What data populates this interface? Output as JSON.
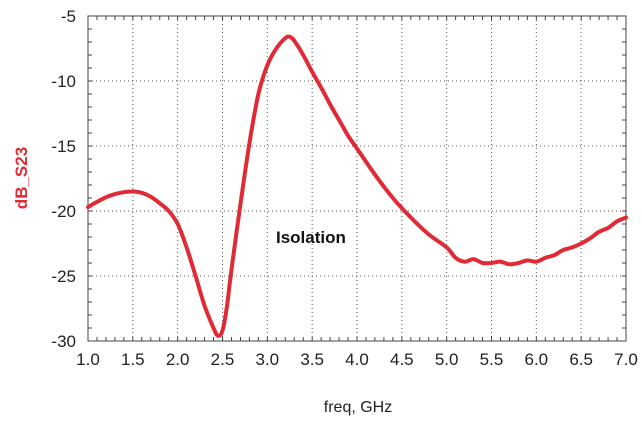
{
  "chart_data": {
    "type": "line",
    "xlabel": "freq, GHz",
    "ylabel": "dB_S23",
    "xlim": [
      1.0,
      7.0
    ],
    "ylim": [
      -30,
      -5
    ],
    "x_ticks": [
      "1.0",
      "1.5",
      "2.0",
      "2.5",
      "3.0",
      "3.5",
      "4.0",
      "4.5",
      "5.0",
      "5.5",
      "6.0",
      "6.5",
      "7.0"
    ],
    "y_ticks": [
      "-5",
      "-10",
      "-15",
      "-20",
      "-25",
      "-30"
    ],
    "grid": "dotted",
    "annotation": "Isolation",
    "colors": {
      "series": "#e02a36",
      "ylabel": "#e02a36"
    },
    "series": [
      {
        "x": [
          1.0,
          1.1,
          1.2,
          1.3,
          1.4,
          1.5,
          1.6,
          1.7,
          1.8,
          1.9,
          2.0,
          2.1,
          2.2,
          2.3,
          2.4,
          2.45,
          2.5,
          2.55,
          2.6,
          2.7,
          2.8,
          2.9,
          3.0,
          3.1,
          3.2,
          3.25,
          3.3,
          3.4,
          3.5,
          3.6,
          3.7,
          3.8,
          3.9,
          4.0,
          4.2,
          4.4,
          4.6,
          4.8,
          5.0,
          5.1,
          5.2,
          5.3,
          5.4,
          5.5,
          5.6,
          5.7,
          5.8,
          5.9,
          6.0,
          6.1,
          6.2,
          6.3,
          6.4,
          6.5,
          6.6,
          6.7,
          6.8,
          6.9,
          7.0
        ],
        "y": [
          -19.7,
          -19.3,
          -18.95,
          -18.7,
          -18.55,
          -18.5,
          -18.6,
          -18.9,
          -19.4,
          -20.0,
          -21.0,
          -22.8,
          -25.0,
          -27.3,
          -29.0,
          -29.6,
          -29.2,
          -27.3,
          -24.5,
          -19.5,
          -14.8,
          -11.0,
          -8.8,
          -7.5,
          -6.7,
          -6.6,
          -6.9,
          -8.0,
          -9.3,
          -10.5,
          -11.8,
          -13.0,
          -14.2,
          -15.2,
          -17.2,
          -19.0,
          -20.5,
          -21.8,
          -22.8,
          -23.6,
          -23.9,
          -23.7,
          -24.0,
          -24.0,
          -23.9,
          -24.1,
          -24.0,
          -23.8,
          -23.9,
          -23.6,
          -23.4,
          -23.0,
          -22.8,
          -22.5,
          -22.1,
          -21.6,
          -21.3,
          -20.8,
          -20.5
        ]
      }
    ]
  }
}
